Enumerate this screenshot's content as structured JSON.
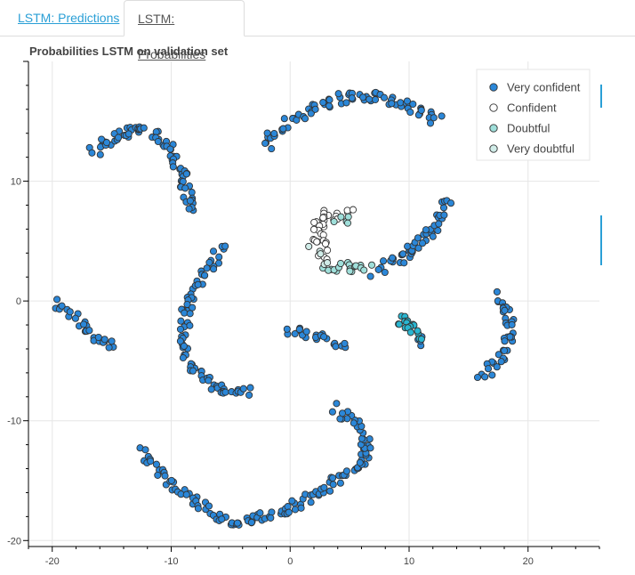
{
  "tabs": [
    {
      "label": "LSTM: Predictions"
    },
    {
      "label": "LSTM: Probabilities"
    }
  ],
  "chart_data": {
    "type": "scatter",
    "title": "Probabilities LSTM on validation set",
    "xlabel": "",
    "ylabel": "",
    "xlim": [
      -22,
      26
    ],
    "ylim": [
      -20.5,
      20
    ],
    "x_ticks": [
      -20,
      -10,
      0,
      10,
      20
    ],
    "y_ticks": [
      -20,
      -10,
      0,
      10
    ],
    "grid": true,
    "legend_position": "top-right",
    "series": [
      {
        "name": "Very confident",
        "color": "#2b87d8",
        "arcs": [
          [
            -16.5,
            12.5,
            -14.5,
            14.5,
            -12,
            14.3,
            30
          ],
          [
            -11.5,
            14.3,
            -8.5,
            11,
            -8.5,
            7.5,
            45
          ],
          [
            -2,
            13,
            0,
            16,
            5,
            17,
            38
          ],
          [
            5,
            17,
            9,
            17.5,
            12.5,
            15,
            40
          ],
          [
            -5.5,
            4.5,
            -10,
            0,
            -8.5,
            -5,
            50
          ],
          [
            -8.5,
            -5,
            -7,
            -8,
            -3,
            -7.5,
            30
          ],
          [
            -19.5,
            0,
            -17,
            -3,
            -15,
            -3.7,
            30
          ],
          [
            0,
            -2.5,
            2,
            -3,
            4.5,
            -3.7,
            22
          ],
          [
            8,
            3,
            11,
            4,
            13.5,
            8.5,
            45
          ],
          [
            7,
            2.5,
            7.5,
            2.6,
            8,
            2.8,
            3
          ],
          [
            17.5,
            0.5,
            20,
            -3,
            16,
            -6.5,
            40
          ],
          [
            10.5,
            -3.3,
            11,
            -3.5,
            11.2,
            -3.3,
            4
          ],
          [
            -12.5,
            -12.5,
            -9,
            -17,
            -4.5,
            -18.5,
            45
          ],
          [
            -4.5,
            -18.5,
            0,
            -18,
            4,
            -15,
            45
          ],
          [
            4,
            -15,
            9,
            -12,
            3.5,
            -9,
            45
          ]
        ]
      },
      {
        "name": "Confident",
        "color": "#ffffff",
        "arcs": [
          [
            3.5,
            7.5,
            1.5,
            6.0,
            3,
            3.8,
            30
          ],
          [
            3.5,
            7,
            4.5,
            7.4,
            5,
            7.2,
            6
          ]
        ]
      },
      {
        "name": "Doubtful",
        "color": "#9fdfda",
        "arcs": [
          [
            3,
            3.1,
            5,
            2.6,
            6.5,
            2.6,
            18
          ],
          [
            3.8,
            7,
            4.5,
            6.8,
            5,
            6.6,
            5
          ]
        ]
      },
      {
        "name": "Very doubtful",
        "color": "#d0ece8",
        "arcs": [
          [
            2,
            4.2,
            2.5,
            3.5,
            3,
            3.2,
            5
          ]
        ]
      },
      {
        "name": "",
        "color": "#29b6d1",
        "arcs": [
          [
            9.2,
            -1.5,
            10,
            -2.2,
            10.7,
            -3,
            18
          ]
        ]
      }
    ]
  }
}
